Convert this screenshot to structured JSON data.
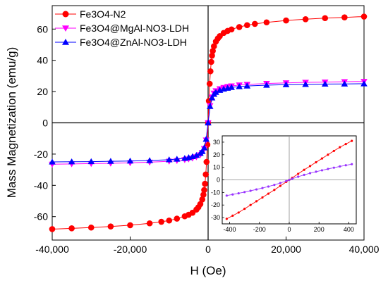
{
  "chart_data": [
    {
      "type": "scatter",
      "xlabel": "H (Oe)",
      "ylabel": "Mass Magnetization (emu/g)",
      "xlim": [
        -40000,
        40000
      ],
      "ylim": [
        -75,
        75
      ],
      "xticks": [
        -40000,
        -20000,
        0,
        20000,
        40000
      ],
      "xtick_labels": [
        "-40,000",
        "-20,000",
        "0",
        "20,000",
        "40,000"
      ],
      "yticks": [
        -60,
        -40,
        -20,
        0,
        20,
        40,
        60
      ],
      "ytick_labels": [
        "-60",
        "-40",
        "-20",
        "0",
        "20",
        "40",
        "60"
      ],
      "legend_position": "top-left",
      "series": [
        {
          "name": "Fe3O4-N2",
          "color": "#ff0000",
          "marker": "circle",
          "x": [
            -40000,
            -35000,
            -30000,
            -25000,
            -20000,
            -15000,
            -12000,
            -10000,
            -8000,
            -6000,
            -5000,
            -4000,
            -3000,
            -2500,
            -2000,
            -1500,
            -1200,
            -1000,
            -800,
            -600,
            -400,
            -200,
            0,
            200,
            400,
            600,
            800,
            1000,
            1200,
            1500,
            2000,
            2500,
            3000,
            4000,
            5000,
            6000,
            8000,
            10000,
            12000,
            15000,
            20000,
            25000,
            30000,
            35000,
            40000
          ],
          "y": [
            -68,
            -67.5,
            -67,
            -66.3,
            -65.5,
            -64.3,
            -63.3,
            -62.5,
            -61.3,
            -59.8,
            -58.8,
            -57.5,
            -55.5,
            -54,
            -52,
            -49,
            -46,
            -43,
            -39,
            -33,
            -25,
            -14,
            0,
            14,
            25,
            33,
            39,
            43,
            46,
            49,
            52,
            54,
            55.5,
            57.5,
            58.8,
            59.8,
            61.3,
            62.5,
            63.3,
            64.3,
            65.5,
            66.3,
            67,
            67.5,
            68
          ]
        },
        {
          "name": "Fe3O4@MgAl-NO3-LDH",
          "color": "#ff00ff",
          "marker": "triangle-down",
          "x": [
            -40000,
            -35000,
            -30000,
            -25000,
            -20000,
            -15000,
            -10000,
            -8000,
            -6000,
            -5000,
            -4000,
            -3000,
            -2000,
            -1500,
            -1000,
            -500,
            0,
            500,
            1000,
            1500,
            2000,
            3000,
            4000,
            5000,
            6000,
            8000,
            10000,
            15000,
            20000,
            25000,
            30000,
            35000,
            40000
          ],
          "y": [
            -26.5,
            -26.3,
            -26.1,
            -25.9,
            -25.6,
            -25.2,
            -24.6,
            -24.2,
            -23.6,
            -23.2,
            -22.6,
            -21.8,
            -20.5,
            -19,
            -16.5,
            -11,
            0,
            11,
            16.5,
            19,
            20.5,
            21.8,
            22.6,
            23.2,
            23.6,
            24.2,
            24.6,
            25.2,
            25.6,
            25.9,
            26.1,
            26.3,
            26.5
          ]
        },
        {
          "name": "Fe3O4@ZnAl-NO3-LDH",
          "color": "#0000ff",
          "marker": "triangle-up",
          "x": [
            -40000,
            -35000,
            -30000,
            -25000,
            -20000,
            -15000,
            -10000,
            -8000,
            -6000,
            -5000,
            -4000,
            -3000,
            -2000,
            -1500,
            -1000,
            -500,
            0,
            500,
            1000,
            1500,
            2000,
            3000,
            4000,
            5000,
            6000,
            8000,
            10000,
            15000,
            20000,
            25000,
            30000,
            35000,
            40000
          ],
          "y": [
            -25,
            -24.9,
            -24.8,
            -24.6,
            -24.4,
            -24.1,
            -23.6,
            -23.2,
            -22.7,
            -22.2,
            -21.6,
            -20.8,
            -19.5,
            -18.3,
            -16,
            -10.5,
            0,
            10.5,
            16,
            18.3,
            19.5,
            20.8,
            21.6,
            22.2,
            22.7,
            23.2,
            23.6,
            24.1,
            24.4,
            24.6,
            24.8,
            24.9,
            25
          ]
        }
      ]
    },
    {
      "type": "line",
      "xlim": [
        -450,
        450
      ],
      "ylim": [
        -35,
        35
      ],
      "xticks": [
        -400,
        -200,
        0,
        200,
        400
      ],
      "xtick_labels": [
        "-400",
        "-200",
        "0",
        "200",
        "400"
      ],
      "yticks": [
        -30,
        -20,
        -10,
        0,
        10,
        20,
        30
      ],
      "ytick_labels": [
        "-30",
        "-20",
        "-10",
        "0",
        "10",
        "20",
        "30"
      ],
      "series": [
        {
          "color": "#ff0000",
          "marker": "circle",
          "x": [
            -420,
            -380,
            -340,
            -300,
            -260,
            -220,
            -180,
            -140,
            -100,
            -60,
            -20,
            0,
            20,
            60,
            100,
            140,
            180,
            220,
            260,
            300,
            340,
            380,
            420
          ],
          "y": [
            -31,
            -28.5,
            -26,
            -23,
            -20,
            -17,
            -14,
            -11,
            -8,
            -4.8,
            -1.6,
            0,
            1.6,
            4.8,
            8,
            11,
            14,
            17,
            20,
            23,
            26,
            28.5,
            31
          ]
        },
        {
          "color": "#9933ff",
          "marker": "circle",
          "x": [
            -420,
            -380,
            -340,
            -300,
            -260,
            -220,
            -180,
            -140,
            -100,
            -60,
            -20,
            0,
            20,
            60,
            100,
            140,
            180,
            220,
            260,
            300,
            340,
            380,
            420
          ],
          "y": [
            -12.5,
            -11.6,
            -10.7,
            -9.7,
            -8.7,
            -7.6,
            -6.5,
            -5.3,
            -4,
            -2.5,
            -0.9,
            0,
            0.9,
            2.5,
            4,
            5.3,
            6.5,
            7.6,
            8.7,
            9.7,
            10.7,
            11.6,
            12.5
          ]
        }
      ]
    }
  ]
}
